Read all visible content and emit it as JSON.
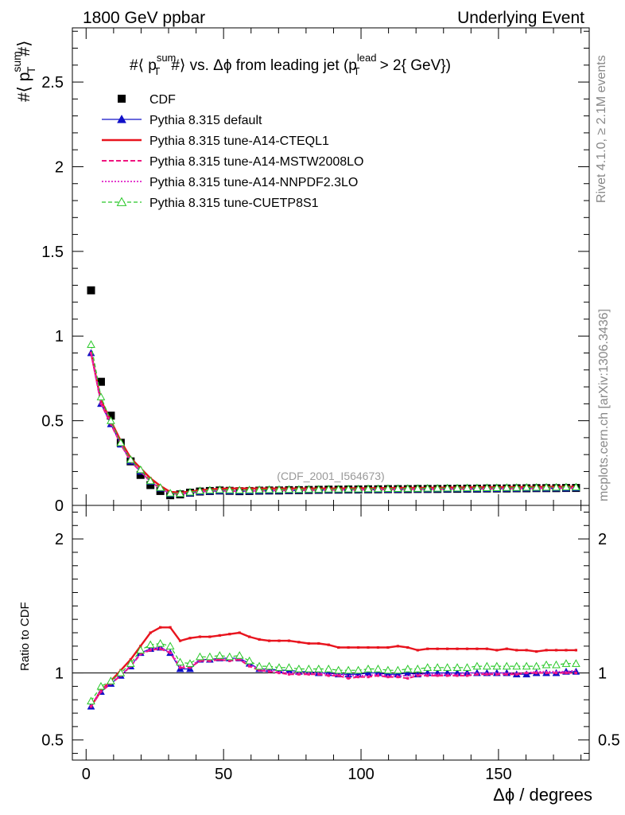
{
  "header": {
    "left": "1800 GeV ppbar",
    "right": "Underlying Event"
  },
  "side_text": {
    "rivet": "Rivet 4.1.0, ≥ 2.1M events",
    "mcplots": "mcplots.cern.ch [arXiv:1306.3436]"
  },
  "watermark": "(CDF_2001_I564673)",
  "chart_data": [
    {
      "type": "scatter",
      "panel": "main",
      "title": {
        "p1": "#⟨ p",
        "sup1": "sum",
        "sub1": "T",
        "p2": "#⟩ vs. Δϕ from leading jet  (p",
        "sup2": "lead",
        "sub2": "T",
        "p3": " > 2{ GeV})"
      },
      "ylabel": {
        "p1": "#⟨ p",
        "sup": "sum",
        "sub": "T",
        "p2": "#⟩"
      },
      "xlabel": "",
      "xlim": [
        -5,
        183
      ],
      "ylim": [
        0,
        2.82
      ],
      "xticks": [
        0,
        50,
        100,
        150
      ],
      "yticks": [
        0,
        0.5,
        1,
        1.5,
        2,
        2.5
      ],
      "ytick_labels": [
        "0",
        "0.5",
        "1",
        "1.5",
        "2",
        "2.5"
      ],
      "x": [
        1.8,
        5.4,
        9.0,
        12.6,
        16.2,
        19.8,
        23.4,
        27.0,
        30.6,
        34.2,
        37.8,
        41.4,
        45.0,
        48.6,
        52.2,
        55.8,
        59.4,
        63.0,
        66.6,
        70.2,
        73.8,
        77.4,
        81.0,
        84.6,
        88.2,
        91.8,
        95.4,
        99.0,
        102.6,
        106.2,
        109.8,
        113.4,
        117.0,
        120.6,
        124.2,
        127.8,
        131.4,
        135.0,
        138.6,
        142.2,
        145.8,
        149.4,
        153.0,
        156.6,
        160.2,
        163.8,
        167.4,
        171.0,
        174.6,
        178.2
      ],
      "series": [
        {
          "name": "CDF",
          "style": "data",
          "color": "#000000",
          "values": [
            1.27,
            0.73,
            0.53,
            0.37,
            0.26,
            0.18,
            0.12,
            0.085,
            0.06,
            0.065,
            0.075,
            0.082,
            0.085,
            0.088,
            0.086,
            0.084,
            0.085,
            0.087,
            0.088,
            0.088,
            0.09,
            0.09,
            0.091,
            0.092,
            0.093,
            0.093,
            0.094,
            0.094,
            0.095,
            0.095,
            0.096,
            0.096,
            0.096,
            0.097,
            0.097,
            0.097,
            0.098,
            0.098,
            0.099,
            0.099,
            0.1,
            0.1,
            0.1,
            0.101,
            0.101,
            0.102,
            0.102,
            0.102,
            0.103,
            0.103
          ]
        },
        {
          "name": "Pythia 8.315 default",
          "style": "blue",
          "color": "#1010c8",
          "values": [
            0.9,
            0.6,
            0.48,
            0.36,
            0.26,
            0.2,
            0.14,
            0.1,
            0.068,
            0.068,
            0.072,
            0.08,
            0.083,
            0.085,
            0.084,
            0.083,
            0.084,
            0.085,
            0.086,
            0.087,
            0.088,
            0.089,
            0.09,
            0.09,
            0.091,
            0.091,
            0.092,
            0.092,
            0.093,
            0.093,
            0.094,
            0.094,
            0.095,
            0.095,
            0.095,
            0.096,
            0.096,
            0.097,
            0.097,
            0.097,
            0.098,
            0.098,
            0.099,
            0.099,
            0.1,
            0.1,
            0.1,
            0.101,
            0.101,
            0.102
          ]
        },
        {
          "name": "Pythia 8.315 tune-A14-CTEQL1",
          "style": "red",
          "color": "#e8141e",
          "values": [
            0.9,
            0.62,
            0.5,
            0.38,
            0.28,
            0.22,
            0.16,
            0.115,
            0.08,
            0.075,
            0.082,
            0.09,
            0.095,
            0.098,
            0.1,
            0.1,
            0.1,
            0.1,
            0.1,
            0.1,
            0.1,
            0.1,
            0.1,
            0.1,
            0.1,
            0.1,
            0.101,
            0.101,
            0.102,
            0.102,
            0.103,
            0.103,
            0.104,
            0.104,
            0.104,
            0.105,
            0.105,
            0.106,
            0.106,
            0.107,
            0.107,
            0.107,
            0.108,
            0.108,
            0.109,
            0.109,
            0.11,
            0.11,
            0.11,
            0.111
          ]
        },
        {
          "name": "Pythia 8.315 tune-A14-MSTW2008LO",
          "style": "magdash",
          "color": "#f0147f",
          "values": [
            0.9,
            0.6,
            0.48,
            0.36,
            0.26,
            0.2,
            0.14,
            0.1,
            0.07,
            0.068,
            0.074,
            0.082,
            0.085,
            0.087,
            0.086,
            0.085,
            0.086,
            0.087,
            0.088,
            0.089,
            0.089,
            0.09,
            0.09,
            0.091,
            0.091,
            0.092,
            0.092,
            0.093,
            0.093,
            0.094,
            0.094,
            0.095,
            0.095,
            0.096,
            0.096,
            0.096,
            0.097,
            0.097,
            0.098,
            0.098,
            0.099,
            0.099,
            0.1,
            0.1,
            0.1,
            0.101,
            0.101,
            0.102,
            0.102,
            0.103
          ]
        },
        {
          "name": "Pythia 8.315 tune-A14-NNPDF2.3LO",
          "style": "magdot",
          "color": "#e020c8",
          "values": [
            0.9,
            0.61,
            0.49,
            0.36,
            0.27,
            0.2,
            0.14,
            0.1,
            0.07,
            0.069,
            0.075,
            0.083,
            0.086,
            0.088,
            0.087,
            0.086,
            0.087,
            0.088,
            0.089,
            0.09,
            0.09,
            0.091,
            0.091,
            0.092,
            0.092,
            0.093,
            0.093,
            0.094,
            0.094,
            0.095,
            0.095,
            0.096,
            0.096,
            0.097,
            0.097,
            0.097,
            0.098,
            0.098,
            0.099,
            0.099,
            0.1,
            0.1,
            0.101,
            0.101,
            0.101,
            0.102,
            0.102,
            0.103,
            0.103,
            0.104
          ]
        },
        {
          "name": "Pythia 8.315 tune-CUETP8S1",
          "style": "green",
          "color": "#28c828",
          "values": [
            0.95,
            0.64,
            0.5,
            0.37,
            0.27,
            0.21,
            0.145,
            0.105,
            0.072,
            0.07,
            0.078,
            0.086,
            0.09,
            0.092,
            0.091,
            0.09,
            0.091,
            0.092,
            0.093,
            0.093,
            0.094,
            0.094,
            0.095,
            0.095,
            0.096,
            0.096,
            0.097,
            0.097,
            0.098,
            0.098,
            0.099,
            0.099,
            0.1,
            0.1,
            0.101,
            0.101,
            0.102,
            0.102,
            0.103,
            0.103,
            0.104,
            0.104,
            0.105,
            0.105,
            0.106,
            0.106,
            0.107,
            0.107,
            0.108,
            0.108
          ]
        }
      ]
    },
    {
      "type": "line",
      "panel": "ratio",
      "ylabel": "Ratio to CDF",
      "xlabel": {
        "sym": "Δϕ",
        "rest": " / degrees"
      },
      "xlim": [
        -5,
        183
      ],
      "ylim": [
        0.35,
        2.25
      ],
      "xticks": [
        0,
        50,
        100,
        150
      ],
      "xtick_labels": [
        "0",
        "50",
        "100",
        "150"
      ],
      "yticks": [
        0.5,
        1,
        2
      ],
      "ytick_labels": [
        "0.5",
        "1",
        "2"
      ],
      "reference_line": 1,
      "x": [
        1.8,
        5.4,
        9.0,
        12.6,
        16.2,
        19.8,
        23.4,
        27.0,
        30.6,
        34.2,
        37.8,
        41.4,
        45.0,
        48.6,
        52.2,
        55.8,
        59.4,
        63.0,
        66.6,
        70.2,
        73.8,
        77.4,
        81.0,
        84.6,
        88.2,
        91.8,
        95.4,
        99.0,
        102.6,
        106.2,
        109.8,
        113.4,
        117.0,
        120.6,
        124.2,
        127.8,
        131.4,
        135.0,
        138.6,
        142.2,
        145.8,
        149.4,
        153.0,
        156.6,
        160.2,
        163.8,
        167.4,
        171.0,
        174.6,
        178.2
      ],
      "series": [
        {
          "name": "Pythia 8.315 default",
          "style": "blue",
          "color": "#1010c8",
          "values": [
            0.75,
            0.86,
            0.92,
            0.98,
            1.05,
            1.15,
            1.18,
            1.19,
            1.15,
            1.03,
            1.03,
            1.1,
            1.1,
            1.11,
            1.11,
            1.11,
            1.07,
            1.03,
            1.03,
            1.02,
            1.02,
            1.01,
            1.01,
            1.0,
            1.0,
            0.99,
            0.99,
            0.99,
            1.0,
            1.0,
            0.99,
            0.99,
            1.0,
            0.99,
            1.0,
            1.0,
            1.0,
            1.0,
            1.0,
            1.0,
            1.0,
            1.0,
            1.0,
            0.99,
            0.99,
            1.0,
            1.0,
            1.0,
            1.01,
            1.01
          ]
        },
        {
          "name": "Pythia 8.315 tune-A14-CTEQL1",
          "style": "red",
          "color": "#e8141e",
          "values": [
            0.75,
            0.87,
            0.94,
            1.02,
            1.1,
            1.2,
            1.3,
            1.34,
            1.34,
            1.24,
            1.26,
            1.27,
            1.27,
            1.28,
            1.29,
            1.3,
            1.27,
            1.25,
            1.24,
            1.24,
            1.24,
            1.23,
            1.22,
            1.22,
            1.21,
            1.19,
            1.19,
            1.19,
            1.19,
            1.19,
            1.19,
            1.2,
            1.19,
            1.17,
            1.18,
            1.18,
            1.18,
            1.18,
            1.18,
            1.18,
            1.18,
            1.17,
            1.18,
            1.17,
            1.17,
            1.16,
            1.17,
            1.17,
            1.17,
            1.17
          ]
        },
        {
          "name": "Pythia 8.315 tune-A14-MSTW2008LO",
          "style": "magdash",
          "color": "#f0147f",
          "values": [
            0.75,
            0.86,
            0.92,
            0.98,
            1.05,
            1.14,
            1.17,
            1.18,
            1.15,
            1.04,
            1.04,
            1.09,
            1.09,
            1.1,
            1.09,
            1.1,
            1.05,
            1.02,
            1.01,
            1.0,
            0.99,
            0.99,
            0.99,
            0.99,
            0.98,
            0.98,
            0.96,
            0.97,
            0.97,
            0.98,
            0.97,
            0.97,
            0.96,
            0.98,
            0.98,
            0.98,
            0.98,
            0.98,
            0.98,
            0.99,
            0.99,
            0.99,
            0.99,
            0.99,
            1.0,
            1.0,
            1.0,
            1.0,
            1.0,
            1.0
          ]
        },
        {
          "name": "Pythia 8.315 tune-A14-NNPDF2.3LO",
          "style": "magdot",
          "color": "#e020c8",
          "values": [
            0.76,
            0.87,
            0.93,
            0.99,
            1.05,
            1.14,
            1.18,
            1.19,
            1.16,
            1.05,
            1.05,
            1.1,
            1.1,
            1.11,
            1.1,
            1.11,
            1.06,
            1.03,
            1.02,
            1.01,
            1.0,
            1.0,
            1.0,
            1.0,
            0.99,
            0.99,
            0.98,
            0.98,
            0.98,
            0.99,
            0.98,
            0.98,
            0.98,
            0.99,
            0.99,
            0.99,
            0.99,
            0.99,
            1.0,
            1.0,
            1.0,
            1.0,
            1.0,
            1.0,
            1.0,
            1.01,
            1.01,
            1.01,
            1.01,
            1.02
          ]
        },
        {
          "name": "Pythia 8.315 tune-CUETP8S1",
          "style": "green",
          "color": "#28c828",
          "values": [
            0.79,
            0.9,
            0.94,
            1.0,
            1.07,
            1.17,
            1.21,
            1.22,
            1.2,
            1.08,
            1.07,
            1.12,
            1.12,
            1.13,
            1.12,
            1.13,
            1.09,
            1.05,
            1.05,
            1.04,
            1.04,
            1.03,
            1.03,
            1.03,
            1.03,
            1.02,
            1.02,
            1.02,
            1.03,
            1.03,
            1.02,
            1.02,
            1.03,
            1.03,
            1.04,
            1.04,
            1.04,
            1.04,
            1.04,
            1.05,
            1.05,
            1.05,
            1.05,
            1.05,
            1.05,
            1.05,
            1.06,
            1.06,
            1.07,
            1.07
          ]
        }
      ]
    }
  ]
}
